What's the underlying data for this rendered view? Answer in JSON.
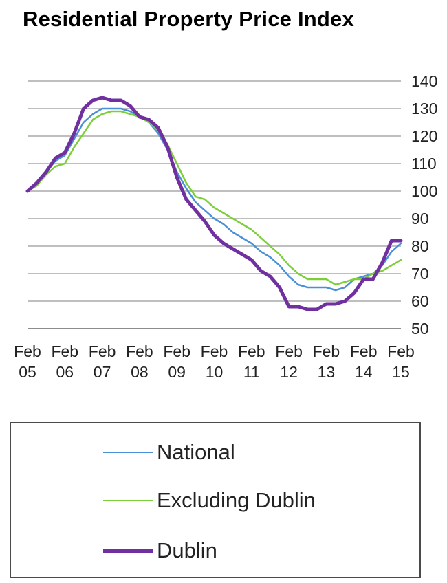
{
  "chart_data": {
    "type": "line",
    "title": "Residential Property Price Index",
    "xlabel": "",
    "ylabel": "",
    "ylim": [
      50,
      140
    ],
    "y_ticks": [
      "140",
      "130",
      "120",
      "110",
      "100",
      "90",
      "80",
      "70",
      "60",
      "50"
    ],
    "y_axis_side": "right",
    "grid": true,
    "legend_position": "bottom",
    "x_tick_labels": [
      {
        "line1": "Feb",
        "line2": "05"
      },
      {
        "line1": "Feb",
        "line2": "06"
      },
      {
        "line1": "Feb",
        "line2": "07"
      },
      {
        "line1": "Feb",
        "line2": "08"
      },
      {
        "line1": "Feb",
        "line2": "09"
      },
      {
        "line1": "Feb",
        "line2": "10"
      },
      {
        "line1": "Feb",
        "line2": "11"
      },
      {
        "line1": "Feb",
        "line2": "12"
      },
      {
        "line1": "Feb",
        "line2": "13"
      },
      {
        "line1": "Feb",
        "line2": "14"
      },
      {
        "line1": "Feb",
        "line2": "15"
      }
    ],
    "x": [
      "2005-02",
      "2005-05",
      "2005-08",
      "2005-11",
      "2006-02",
      "2006-05",
      "2006-08",
      "2006-11",
      "2007-02",
      "2007-05",
      "2007-08",
      "2007-11",
      "2008-02",
      "2008-05",
      "2008-08",
      "2008-11",
      "2009-02",
      "2009-05",
      "2009-08",
      "2009-11",
      "2010-02",
      "2010-05",
      "2010-08",
      "2010-11",
      "2011-02",
      "2011-05",
      "2011-08",
      "2011-11",
      "2012-02",
      "2012-05",
      "2012-08",
      "2012-11",
      "2013-02",
      "2013-05",
      "2013-08",
      "2013-11",
      "2014-02",
      "2014-05",
      "2014-08",
      "2014-11",
      "2015-02"
    ],
    "series": [
      {
        "name": "National",
        "color": "#4a90d9",
        "width": 2.5,
        "values": [
          100,
          103,
          107,
          111,
          113,
          119,
          125,
          128,
          130,
          130,
          130,
          129,
          127,
          125,
          121,
          115,
          107,
          101,
          96,
          93,
          90,
          88,
          85,
          83,
          81,
          78,
          76,
          73,
          69,
          66,
          65,
          65,
          65,
          64,
          65,
          68,
          69,
          70,
          73,
          78,
          81
        ]
      },
      {
        "name": "Excluding Dublin",
        "color": "#7dcf3a",
        "width": 2.5,
        "values": [
          100,
          102,
          106,
          109,
          110,
          116,
          121,
          126,
          128,
          129,
          129,
          128,
          127,
          125,
          122,
          117,
          110,
          103,
          98,
          97,
          94,
          92,
          90,
          88,
          86,
          83,
          80,
          77,
          73,
          70,
          68,
          68,
          68,
          66,
          67,
          68,
          68,
          70,
          71,
          73,
          75
        ]
      },
      {
        "name": "Dublin",
        "color": "#7030a0",
        "width": 5,
        "values": [
          100,
          103,
          107,
          112,
          114,
          121,
          130,
          133,
          134,
          133,
          133,
          131,
          127,
          126,
          123,
          116,
          105,
          97,
          93,
          89,
          84,
          81,
          79,
          77,
          75,
          71,
          69,
          65,
          58,
          58,
          57,
          57,
          59,
          59,
          60,
          63,
          68,
          68,
          74,
          82,
          82
        ]
      }
    ]
  }
}
